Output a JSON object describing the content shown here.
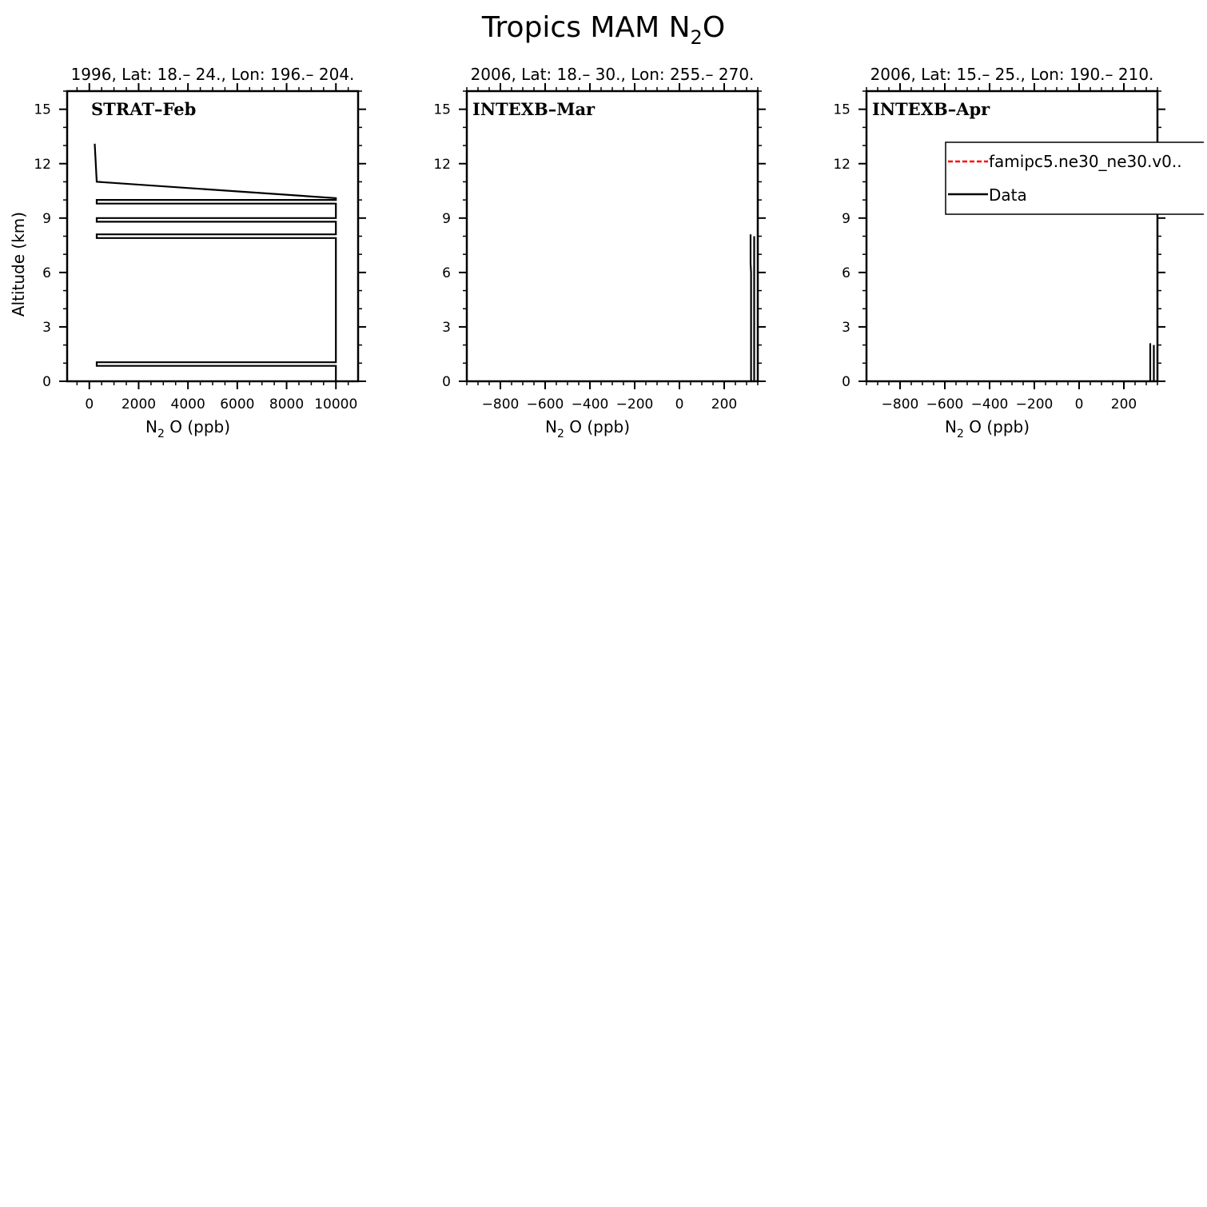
{
  "figure": {
    "title_main": "Tropics MAM N",
    "title_sub": "2",
    "title_tail": "O"
  },
  "colors": {
    "model": "#ff0000",
    "data": "#000000",
    "axis": "#000000"
  },
  "legend": {
    "placement": "upper-right of third panel",
    "entries": [
      {
        "label": "famipc5.ne30_ne30.v0..",
        "color": "#ff0000",
        "style": "dashed"
      },
      {
        "label": "Data",
        "color": "#000000",
        "style": "solid"
      }
    ]
  },
  "chart_data": [
    {
      "type": "line",
      "title": "1996, Lat: 18.– 24., Lon: 196.– 204.",
      "panel_label": "STRAT–Feb",
      "xlabel": {
        "main": "N",
        "sub": "2",
        "tail": "O (ppb)"
      },
      "ylabel": "Altitude (km)",
      "xlim": [
        -900,
        10900
      ],
      "ylim": [
        0,
        16
      ],
      "xticks": [
        0,
        2000,
        4000,
        6000,
        8000,
        10000
      ],
      "xtick_labels": [
        "0",
        "2000",
        "4000",
        "6000",
        "8000",
        "10000"
      ],
      "xminor": 500,
      "yticks": [
        0,
        3,
        6,
        9,
        12,
        15
      ],
      "ytick_labels": [
        "0",
        "3",
        "6",
        "9",
        "12",
        "15"
      ],
      "yminor": 1,
      "series": [
        {
          "name": "Data",
          "style": "solid",
          "x": [
            220,
            300,
            10000,
            10000,
            300,
            300,
            10000,
            10000,
            300,
            300,
            10000,
            10000,
            300,
            300,
            10000,
            10000,
            300,
            300,
            10000,
            10000,
            300,
            300,
            10000,
            10000
          ],
          "y": [
            13.1,
            11.0,
            10.1,
            10.0,
            10.0,
            9.8,
            9.8,
            9.0,
            9.0,
            8.8,
            8.8,
            8.1,
            8.1,
            7.9,
            7.9,
            1.05,
            1.05,
            0.85,
            0.85,
            0.85,
            0.85,
            0.85,
            0.85,
            0.0
          ]
        }
      ]
    },
    {
      "type": "line",
      "title": "2006, Lat: 18.– 30., Lon: 255.– 270.",
      "panel_label": "INTEXB–Mar",
      "xlabel": {
        "main": "N",
        "sub": "2",
        "tail": "O (ppb)"
      },
      "ylabel": "",
      "xlim": [
        -950,
        350
      ],
      "ylim": [
        0,
        16
      ],
      "xticks": [
        -800,
        -600,
        -400,
        -200,
        0,
        200
      ],
      "xtick_labels": [
        "−800",
        "−600",
        "−400",
        "−200",
        "0",
        "200"
      ],
      "xminor": 50,
      "yticks": [
        0,
        3,
        6,
        9,
        12,
        15
      ],
      "ytick_labels": [
        "0",
        "3",
        "6",
        "9",
        "12",
        "15"
      ],
      "yminor": 1,
      "series": [
        {
          "name": "Data",
          "style": "solid",
          "x": [
            320,
            320,
            318,
            318
          ],
          "y": [
            0.0,
            6.0,
            6.5,
            8.1
          ]
        },
        {
          "name": "Data",
          "style": "solid",
          "x": [
            334,
            334
          ],
          "y": [
            0.0,
            8.0
          ]
        }
      ]
    },
    {
      "type": "line",
      "title": "2006, Lat: 15.– 25., Lon: 190.– 210.",
      "panel_label": "INTEXB–Apr",
      "xlabel": {
        "main": "N",
        "sub": "2",
        "tail": "O (ppb)"
      },
      "ylabel": "",
      "xlim": [
        -950,
        350
      ],
      "ylim": [
        0,
        16
      ],
      "xticks": [
        -800,
        -600,
        -400,
        -200,
        0,
        200
      ],
      "xtick_labels": [
        "−800",
        "−600",
        "−400",
        "−200",
        "0",
        "200"
      ],
      "xminor": 50,
      "yticks": [
        0,
        3,
        6,
        9,
        12,
        15
      ],
      "ytick_labels": [
        "0",
        "3",
        "6",
        "9",
        "12",
        "15"
      ],
      "yminor": 1,
      "series": [
        {
          "name": "Data",
          "style": "solid",
          "x": [
            318,
            318
          ],
          "y": [
            0.0,
            2.1
          ]
        },
        {
          "name": "Data",
          "style": "solid",
          "x": [
            334,
            334
          ],
          "y": [
            0.0,
            2.0
          ]
        }
      ]
    }
  ]
}
